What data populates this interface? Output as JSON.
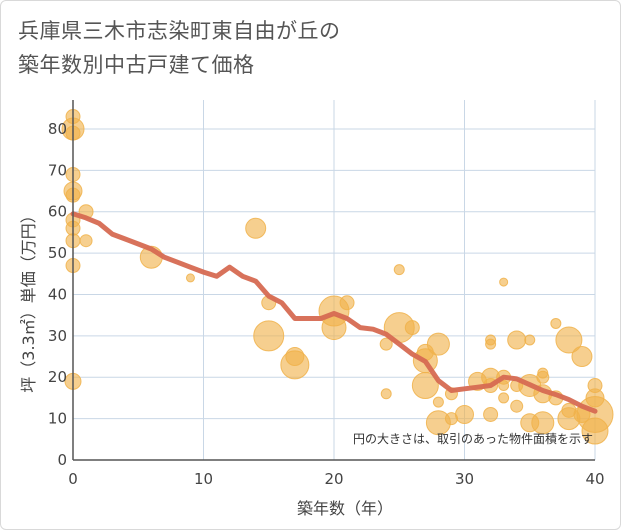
{
  "title_line1": "兵庫県三木市志染町東自由が丘の",
  "title_line2": "築年数別中古戸建て価格",
  "chart_data": {
    "type": "scatter",
    "title": "兵庫県三木市志染町東自由が丘の築年数別中古戸建て価格",
    "xlabel": "築年数（年）",
    "ylabel": "坪（3.3㎡）単価（万円）",
    "xlim": [
      0,
      40
    ],
    "ylim": [
      0,
      87
    ],
    "xticks": [
      0,
      10,
      20,
      30,
      40
    ],
    "yticks": [
      0,
      10,
      20,
      30,
      40,
      50,
      60,
      70,
      80
    ],
    "grid": true,
    "annotation": "円の大きさは、取引のあった物件面積を示す",
    "colors": {
      "bubble": "#f0b24a",
      "trend": "#d66a52",
      "grid": "#c9d7e6",
      "axis": "#555555"
    },
    "points": [
      {
        "x": 0,
        "y": 83,
        "s": 7
      },
      {
        "x": 0,
        "y": 80,
        "s": 11
      },
      {
        "x": 0,
        "y": 79,
        "s": 7
      },
      {
        "x": 0,
        "y": 69,
        "s": 7
      },
      {
        "x": 0,
        "y": 65,
        "s": 9
      },
      {
        "x": 0,
        "y": 64,
        "s": 7
      },
      {
        "x": 0,
        "y": 58,
        "s": 7
      },
      {
        "x": 0,
        "y": 56,
        "s": 7
      },
      {
        "x": 0,
        "y": 53,
        "s": 7
      },
      {
        "x": 0,
        "y": 47,
        "s": 7
      },
      {
        "x": 0,
        "y": 19,
        "s": 8
      },
      {
        "x": 1,
        "y": 60,
        "s": 7
      },
      {
        "x": 1,
        "y": 53,
        "s": 6
      },
      {
        "x": 6,
        "y": 49,
        "s": 11
      },
      {
        "x": 9,
        "y": 44,
        "s": 4
      },
      {
        "x": 14,
        "y": 56,
        "s": 10
      },
      {
        "x": 15,
        "y": 38,
        "s": 7
      },
      {
        "x": 15,
        "y": 30,
        "s": 15
      },
      {
        "x": 17,
        "y": 25,
        "s": 9
      },
      {
        "x": 17,
        "y": 23,
        "s": 14
      },
      {
        "x": 20,
        "y": 36,
        "s": 15
      },
      {
        "x": 20,
        "y": 32,
        "s": 12
      },
      {
        "x": 21,
        "y": 38,
        "s": 7
      },
      {
        "x": 24,
        "y": 28,
        "s": 6
      },
      {
        "x": 24,
        "y": 16,
        "s": 5
      },
      {
        "x": 25,
        "y": 46,
        "s": 5
      },
      {
        "x": 25,
        "y": 32,
        "s": 15
      },
      {
        "x": 26,
        "y": 32,
        "s": 7
      },
      {
        "x": 27,
        "y": 26,
        "s": 8
      },
      {
        "x": 27,
        "y": 24,
        "s": 12
      },
      {
        "x": 27,
        "y": 18,
        "s": 13
      },
      {
        "x": 28,
        "y": 28,
        "s": 11
      },
      {
        "x": 28,
        "y": 14,
        "s": 5
      },
      {
        "x": 28,
        "y": 9,
        "s": 12
      },
      {
        "x": 29,
        "y": 16,
        "s": 6
      },
      {
        "x": 29,
        "y": 10,
        "s": 6
      },
      {
        "x": 30,
        "y": 11,
        "s": 9
      },
      {
        "x": 31,
        "y": 19,
        "s": 9
      },
      {
        "x": 32,
        "y": 29,
        "s": 5
      },
      {
        "x": 32,
        "y": 28,
        "s": 5
      },
      {
        "x": 32,
        "y": 20,
        "s": 9
      },
      {
        "x": 32,
        "y": 18,
        "s": 7
      },
      {
        "x": 32,
        "y": 11,
        "s": 7
      },
      {
        "x": 33,
        "y": 43,
        "s": 4
      },
      {
        "x": 33,
        "y": 20,
        "s": 7
      },
      {
        "x": 33,
        "y": 18,
        "s": 5
      },
      {
        "x": 33,
        "y": 15,
        "s": 5
      },
      {
        "x": 34,
        "y": 29,
        "s": 9
      },
      {
        "x": 34,
        "y": 18,
        "s": 6
      },
      {
        "x": 34,
        "y": 13,
        "s": 6
      },
      {
        "x": 35,
        "y": 29,
        "s": 5
      },
      {
        "x": 35,
        "y": 18,
        "s": 11
      },
      {
        "x": 35,
        "y": 9,
        "s": 9
      },
      {
        "x": 36,
        "y": 21,
        "s": 5
      },
      {
        "x": 36,
        "y": 20,
        "s": 6
      },
      {
        "x": 36,
        "y": 16,
        "s": 9
      },
      {
        "x": 36,
        "y": 9,
        "s": 11
      },
      {
        "x": 37,
        "y": 33,
        "s": 5
      },
      {
        "x": 37,
        "y": 15,
        "s": 7
      },
      {
        "x": 38,
        "y": 29,
        "s": 13
      },
      {
        "x": 38,
        "y": 12,
        "s": 7
      },
      {
        "x": 38,
        "y": 10,
        "s": 11
      },
      {
        "x": 39,
        "y": 25,
        "s": 10
      },
      {
        "x": 39,
        "y": 11,
        "s": 8
      },
      {
        "x": 40,
        "y": 18,
        "s": 7
      },
      {
        "x": 40,
        "y": 15,
        "s": 9
      },
      {
        "x": 40,
        "y": 11,
        "s": 18
      },
      {
        "x": 40,
        "y": 7,
        "s": 13
      }
    ],
    "trend": {
      "x": [
        0,
        1,
        2,
        3,
        4,
        5,
        6,
        7,
        8,
        9,
        10,
        11,
        12,
        13,
        14,
        15,
        16,
        17,
        18,
        19,
        20,
        21,
        22,
        23,
        24,
        25,
        26,
        27,
        28,
        29,
        30,
        31,
        32,
        33,
        34,
        35,
        36,
        37,
        38,
        39,
        40
      ],
      "y": [
        59.5,
        58.5,
        57.2,
        54.6,
        53.4,
        52.2,
        51,
        49,
        47.8,
        46.6,
        45.4,
        44.4,
        46.6,
        44.4,
        43.2,
        39.6,
        38,
        34.2,
        34.2,
        34.2,
        35.4,
        34.2,
        32,
        31.6,
        30.4,
        28,
        25.6,
        23.8,
        19.2,
        16.8,
        17.2,
        17.6,
        18,
        20,
        19.6,
        18.2,
        16.8,
        15.8,
        14.6,
        13,
        11.8
      ]
    }
  }
}
